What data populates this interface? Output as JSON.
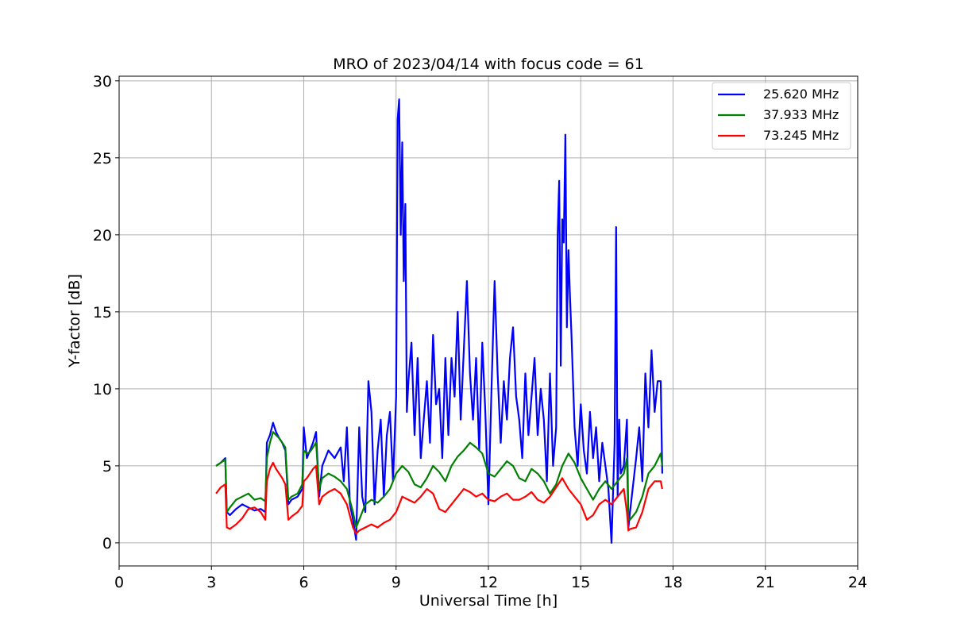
{
  "chart_data": {
    "type": "line",
    "title": "MRO of 2023/04/14 with focus code = 61",
    "xlabel": "Universal Time [h]",
    "ylabel": "Y-factor [dB]",
    "xlim": [
      0,
      24
    ],
    "ylim": [
      -1.5,
      30.3
    ],
    "xticks": [
      0,
      3,
      6,
      9,
      12,
      15,
      18,
      21,
      24
    ],
    "yticks": [
      0,
      5,
      10,
      15,
      20,
      25,
      30
    ],
    "grid": true,
    "legend_position": "top-right",
    "series": [
      {
        "name": "25.620 MHz",
        "color": "#0000ff",
        "x": [
          3.15,
          3.3,
          3.45,
          3.5,
          3.6,
          3.8,
          4.0,
          4.2,
          4.4,
          4.6,
          4.75,
          4.8,
          4.9,
          5.0,
          5.1,
          5.2,
          5.3,
          5.4,
          5.5,
          5.6,
          5.8,
          5.95,
          6.0,
          6.1,
          6.2,
          6.3,
          6.4,
          6.5,
          6.6,
          6.8,
          7.0,
          7.2,
          7.3,
          7.4,
          7.5,
          7.6,
          7.7,
          7.8,
          7.9,
          8.0,
          8.1,
          8.2,
          8.3,
          8.4,
          8.5,
          8.6,
          8.7,
          8.8,
          8.9,
          9.0,
          9.05,
          9.1,
          9.15,
          9.2,
          9.25,
          9.3,
          9.35,
          9.4,
          9.5,
          9.6,
          9.7,
          9.8,
          9.9,
          10.0,
          10.1,
          10.2,
          10.3,
          10.4,
          10.5,
          10.6,
          10.7,
          10.8,
          10.9,
          11.0,
          11.1,
          11.2,
          11.3,
          11.4,
          11.5,
          11.6,
          11.7,
          11.8,
          11.9,
          12.0,
          12.1,
          12.2,
          12.3,
          12.4,
          12.5,
          12.6,
          12.7,
          12.8,
          12.9,
          13.0,
          13.1,
          13.2,
          13.3,
          13.4,
          13.5,
          13.6,
          13.7,
          13.8,
          13.9,
          14.0,
          14.1,
          14.2,
          14.25,
          14.3,
          14.35,
          14.4,
          14.45,
          14.5,
          14.55,
          14.6,
          14.65,
          14.7,
          14.8,
          14.9,
          15.0,
          15.1,
          15.2,
          15.3,
          15.4,
          15.5,
          15.6,
          15.7,
          15.8,
          15.9,
          16.0,
          16.1,
          16.15,
          16.2,
          16.25,
          16.3,
          16.4,
          16.5,
          16.55,
          16.6,
          16.8,
          16.9,
          17.0,
          17.1,
          17.2,
          17.3,
          17.4,
          17.5,
          17.6,
          17.65
        ],
        "y": [
          5.0,
          5.2,
          5.5,
          2.0,
          1.8,
          2.2,
          2.5,
          2.3,
          2.1,
          2.2,
          2.0,
          6.5,
          7.0,
          7.8,
          7.2,
          6.8,
          6.5,
          6.0,
          2.5,
          2.8,
          3.0,
          3.5,
          7.5,
          5.5,
          6.0,
          6.5,
          7.2,
          3.0,
          5.0,
          6.0,
          5.5,
          6.2,
          4.0,
          7.5,
          2.5,
          1.5,
          0.2,
          7.5,
          3.0,
          2.0,
          10.5,
          8.5,
          2.5,
          6.0,
          8.0,
          3.0,
          7.0,
          8.5,
          4.0,
          9.5,
          27.5,
          28.8,
          20.0,
          26.0,
          17.0,
          22.0,
          8.5,
          10.5,
          13.0,
          7.0,
          12.0,
          5.5,
          8.0,
          10.5,
          6.5,
          13.5,
          9.0,
          10.0,
          5.5,
          12.0,
          7.0,
          12.0,
          9.5,
          15.0,
          8.0,
          12.5,
          17.0,
          11.0,
          8.0,
          12.0,
          6.0,
          13.0,
          8.5,
          2.5,
          10.0,
          17.0,
          11.0,
          6.5,
          10.5,
          8.0,
          12.0,
          14.0,
          9.5,
          8.0,
          5.5,
          11.0,
          7.0,
          9.5,
          12.0,
          7.0,
          10.0,
          8.0,
          4.0,
          11.0,
          5.0,
          7.5,
          20.0,
          23.5,
          11.5,
          21.0,
          19.5,
          26.5,
          14.0,
          19.0,
          16.0,
          13.5,
          7.5,
          5.0,
          9.0,
          6.0,
          4.5,
          8.5,
          5.5,
          7.5,
          4.0,
          6.5,
          5.0,
          3.5,
          0.0,
          6.5,
          20.5,
          3.0,
          8.0,
          4.5,
          5.0,
          8.0,
          1.0,
          2.0,
          5.5,
          7.5,
          4.0,
          11.0,
          7.5,
          12.5,
          8.5,
          10.5,
          10.5,
          4.5
        ]
      },
      {
        "name": "37.933 MHz",
        "color": "#008000",
        "x": [
          3.15,
          3.3,
          3.45,
          3.5,
          3.6,
          3.8,
          4.0,
          4.2,
          4.4,
          4.6,
          4.75,
          4.8,
          4.9,
          5.0,
          5.1,
          5.2,
          5.3,
          5.4,
          5.5,
          5.6,
          5.8,
          5.95,
          6.0,
          6.1,
          6.2,
          6.3,
          6.4,
          6.5,
          6.6,
          6.8,
          7.0,
          7.2,
          7.4,
          7.6,
          7.7,
          7.8,
          8.0,
          8.2,
          8.4,
          8.6,
          8.8,
          9.0,
          9.2,
          9.4,
          9.6,
          9.8,
          10.0,
          10.2,
          10.4,
          10.6,
          10.8,
          11.0,
          11.2,
          11.4,
          11.6,
          11.8,
          12.0,
          12.2,
          12.4,
          12.6,
          12.8,
          13.0,
          13.2,
          13.4,
          13.6,
          13.8,
          14.0,
          14.2,
          14.4,
          14.6,
          14.8,
          15.0,
          15.2,
          15.4,
          15.6,
          15.8,
          16.0,
          16.2,
          16.4,
          16.5,
          16.55,
          16.6,
          16.8,
          17.0,
          17.2,
          17.4,
          17.6,
          17.65
        ],
        "y": [
          5.0,
          5.2,
          5.4,
          2.0,
          2.3,
          2.8,
          3.0,
          3.2,
          2.8,
          2.9,
          2.7,
          5.5,
          6.5,
          7.2,
          7.0,
          6.8,
          6.5,
          6.2,
          2.8,
          3.0,
          3.2,
          3.8,
          6.0,
          5.8,
          5.9,
          6.2,
          6.5,
          3.5,
          4.2,
          4.5,
          4.3,
          4.0,
          3.5,
          2.0,
          1.0,
          1.5,
          2.5,
          2.8,
          2.6,
          3.0,
          3.5,
          4.5,
          5.0,
          4.6,
          3.8,
          3.6,
          4.2,
          5.0,
          4.6,
          4.0,
          5.0,
          5.6,
          6.0,
          6.5,
          6.2,
          5.8,
          4.5,
          4.3,
          4.8,
          5.3,
          5.0,
          4.2,
          4.0,
          4.8,
          4.5,
          4.0,
          3.2,
          3.8,
          5.0,
          5.8,
          5.2,
          4.2,
          3.5,
          2.8,
          3.5,
          4.0,
          3.5,
          4.0,
          4.5,
          5.5,
          1.5,
          1.5,
          2.0,
          3.0,
          4.5,
          5.0,
          5.8,
          5.0
        ]
      },
      {
        "name": "73.245 MHz",
        "color": "#ff0000",
        "x": [
          3.15,
          3.3,
          3.45,
          3.5,
          3.6,
          3.8,
          4.0,
          4.2,
          4.4,
          4.6,
          4.75,
          4.8,
          4.9,
          5.0,
          5.1,
          5.2,
          5.3,
          5.4,
          5.5,
          5.6,
          5.8,
          5.95,
          6.0,
          6.1,
          6.2,
          6.3,
          6.4,
          6.5,
          6.6,
          6.8,
          7.0,
          7.2,
          7.4,
          7.6,
          7.7,
          7.8,
          8.0,
          8.2,
          8.4,
          8.6,
          8.8,
          9.0,
          9.2,
          9.4,
          9.6,
          9.8,
          10.0,
          10.2,
          10.4,
          10.6,
          10.8,
          11.0,
          11.2,
          11.4,
          11.6,
          11.8,
          12.0,
          12.2,
          12.4,
          12.6,
          12.8,
          13.0,
          13.2,
          13.4,
          13.6,
          13.8,
          14.0,
          14.2,
          14.4,
          14.6,
          14.8,
          15.0,
          15.2,
          15.4,
          15.6,
          15.8,
          16.0,
          16.2,
          16.4,
          16.5,
          16.55,
          16.6,
          16.8,
          17.0,
          17.2,
          17.4,
          17.6,
          17.65
        ],
        "y": [
          3.2,
          3.6,
          3.8,
          1.0,
          0.9,
          1.2,
          1.6,
          2.2,
          2.3,
          2.0,
          1.5,
          4.0,
          4.8,
          5.2,
          4.8,
          4.5,
          4.2,
          3.8,
          1.5,
          1.7,
          2.0,
          2.4,
          4.0,
          4.2,
          4.5,
          4.8,
          5.0,
          2.5,
          3.0,
          3.3,
          3.5,
          3.2,
          2.5,
          1.0,
          0.6,
          0.8,
          1.0,
          1.2,
          1.0,
          1.3,
          1.5,
          2.0,
          3.0,
          2.8,
          2.6,
          3.0,
          3.5,
          3.2,
          2.2,
          2.0,
          2.5,
          3.0,
          3.5,
          3.3,
          3.0,
          3.2,
          2.8,
          2.7,
          3.0,
          3.2,
          2.8,
          2.8,
          3.0,
          3.3,
          2.8,
          2.6,
          3.0,
          3.6,
          4.2,
          3.5,
          3.0,
          2.5,
          1.5,
          1.8,
          2.5,
          2.8,
          2.5,
          3.0,
          3.5,
          2.0,
          0.8,
          0.9,
          1.0,
          2.0,
          3.5,
          4.0,
          4.0,
          3.5
        ]
      }
    ]
  }
}
